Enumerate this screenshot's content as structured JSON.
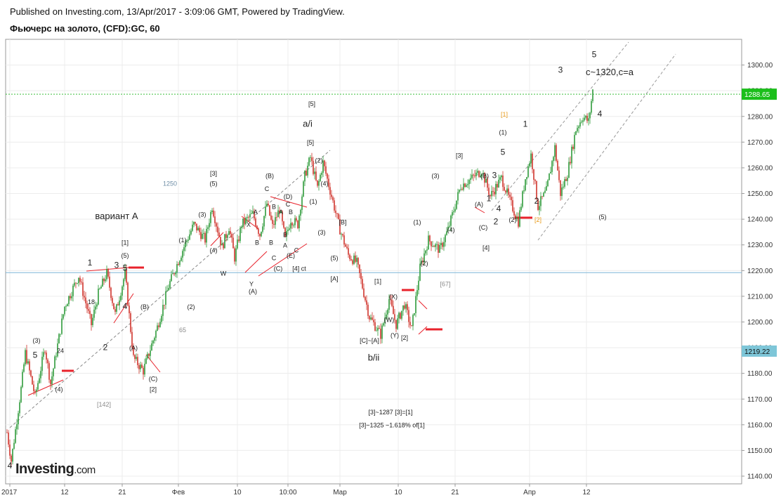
{
  "header": {
    "published": "Published on Investing.com, 13/Apr/2017 - 3:09:06 GMT, Powered by TradingView.",
    "symbol": "Фьючерс на золото, (CFD):GC, 60"
  },
  "logo": {
    "name": "Investing",
    "suffix": ".com"
  },
  "colors": {
    "up": "#2e9b3a",
    "down": "#d0342c",
    "grid": "#ececec",
    "trend": "#888888",
    "ref_line": "#7fb5d8",
    "last_line": "#3bbf3b",
    "marker": "#e8222b",
    "orange": "#e89a1b"
  },
  "chart_data": {
    "type": "candlestick",
    "title": "Фьючерс на золото, (CFD):GC, 60",
    "ylim": [
      1137,
      1310
    ],
    "y_ticks": [
      1140,
      1150,
      1160,
      1170,
      1180,
      1190,
      1200,
      1210,
      1220,
      1230,
      1240,
      1250,
      1260,
      1270,
      1280,
      1290,
      1300
    ],
    "x_ticks": [
      "2017",
      "12",
      "21",
      "Фев",
      "10",
      "10:00",
      "Мар",
      "10",
      "21",
      "Апр",
      "12"
    ],
    "last_price": "1288.65",
    "ref_price": "1219.22",
    "price_path": [
      [
        0,
        1157
      ],
      [
        3,
        1146
      ],
      [
        10,
        1174
      ],
      [
        13,
        1188
      ],
      [
        20,
        1171
      ],
      [
        27,
        1190
      ],
      [
        31,
        1176
      ],
      [
        41,
        1206
      ],
      [
        51,
        1218
      ],
      [
        60,
        1199
      ],
      [
        65,
        1211
      ],
      [
        71,
        1219
      ],
      [
        77,
        1203
      ],
      [
        84,
        1219
      ],
      [
        90,
        1186
      ],
      [
        97,
        1181
      ],
      [
        107,
        1198
      ],
      [
        115,
        1214
      ],
      [
        125,
        1228
      ],
      [
        133,
        1238
      ],
      [
        141,
        1232
      ],
      [
        146,
        1245
      ],
      [
        153,
        1229
      ],
      [
        158,
        1237
      ],
      [
        162,
        1225
      ],
      [
        167,
        1238
      ],
      [
        175,
        1242
      ],
      [
        180,
        1234
      ],
      [
        185,
        1246
      ],
      [
        189,
        1237
      ],
      [
        194,
        1244
      ],
      [
        198,
        1232
      ],
      [
        202,
        1240
      ],
      [
        207,
        1238
      ],
      [
        212,
        1257
      ],
      [
        216,
        1264
      ],
      [
        221,
        1252
      ],
      [
        225,
        1262
      ],
      [
        231,
        1249
      ],
      [
        237,
        1236
      ],
      [
        243,
        1226
      ],
      [
        249,
        1223
      ],
      [
        258,
        1202
      ],
      [
        266,
        1195
      ],
      [
        272,
        1209
      ],
      [
        277,
        1199
      ],
      [
        283,
        1207
      ],
      [
        288,
        1197
      ],
      [
        294,
        1221
      ],
      [
        300,
        1232
      ],
      [
        308,
        1228
      ],
      [
        314,
        1236
      ],
      [
        323,
        1253
      ],
      [
        331,
        1256
      ],
      [
        338,
        1259
      ],
      [
        344,
        1249
      ],
      [
        352,
        1256
      ],
      [
        358,
        1247
      ],
      [
        364,
        1239
      ],
      [
        369,
        1256
      ],
      [
        373,
        1265
      ],
      [
        378,
        1245
      ],
      [
        384,
        1251
      ],
      [
        390,
        1268
      ],
      [
        394,
        1250
      ],
      [
        399,
        1258
      ],
      [
        405,
        1275
      ],
      [
        410,
        1280
      ],
      [
        414,
        1278
      ],
      [
        417,
        1290
      ]
    ],
    "annotations": [
      {
        "text": "4",
        "x": 2,
        "y": 1143
      },
      {
        "text": "5",
        "x": 20,
        "y": 1186
      },
      {
        "text": "(3)",
        "x": 21,
        "y": 1192
      },
      {
        "text": "24",
        "x": 38,
        "y": 1188
      },
      {
        "text": "(4)",
        "x": 37,
        "y": 1173
      },
      {
        "text": "1",
        "x": 59,
        "y": 1222
      },
      {
        "text": "18",
        "x": 60,
        "y": 1207
      },
      {
        "text": "2",
        "x": 70,
        "y": 1189
      },
      {
        "text": "3",
        "x": 78,
        "y": 1221
      },
      {
        "text": "5",
        "x": 84,
        "y": 1220
      },
      {
        "text": "(5)",
        "x": 84,
        "y": 1225
      },
      {
        "text": "[1]",
        "x": 84,
        "y": 1230
      },
      {
        "text": "4",
        "x": 84,
        "y": 1205
      },
      {
        "text": "вариант А",
        "x": 78,
        "y": 1240
      },
      {
        "text": "(B)",
        "x": 98,
        "y": 1205
      },
      {
        "text": "(A)",
        "x": 90,
        "y": 1189
      },
      {
        "text": "(C)",
        "x": 104,
        "y": 1177
      },
      {
        "text": "[2]",
        "x": 104,
        "y": 1173
      },
      {
        "text": "[142]",
        "x": 69,
        "y": 1167
      },
      {
        "text": "65",
        "x": 125,
        "y": 1196
      },
      {
        "text": "1250",
        "x": 116,
        "y": 1253
      },
      {
        "text": "(1)",
        "x": 125,
        "y": 1231
      },
      {
        "text": "(2)",
        "x": 131,
        "y": 1205
      },
      {
        "text": "(3)",
        "x": 139,
        "y": 1241
      },
      {
        "text": "(4)",
        "x": 147,
        "y": 1227
      },
      {
        "text": "(5)",
        "x": 147,
        "y": 1253
      },
      {
        "text": "[3]",
        "x": 147,
        "y": 1257
      },
      {
        "text": "W",
        "x": 154,
        "y": 1218
      },
      {
        "text": "X",
        "x": 172,
        "y": 1237
      },
      {
        "text": "Y",
        "x": 174,
        "y": 1214
      },
      {
        "text": "(A)",
        "x": 175,
        "y": 1211
      },
      {
        "text": "B",
        "x": 178,
        "y": 1230
      },
      {
        "text": "A",
        "x": 177,
        "y": 1242
      },
      {
        "text": "C",
        "x": 185,
        "y": 1251
      },
      {
        "text": "B",
        "x": 190,
        "y": 1244
      },
      {
        "text": "A",
        "x": 195,
        "y": 1242
      },
      {
        "text": "B",
        "x": 188,
        "y": 1230
      },
      {
        "text": "(B)",
        "x": 187,
        "y": 1256
      },
      {
        "text": "C",
        "x": 190,
        "y": 1224
      },
      {
        "text": "(C)",
        "x": 193,
        "y": 1220
      },
      {
        "text": "A",
        "x": 198,
        "y": 1229
      },
      {
        "text": "B",
        "x": 198,
        "y": 1233
      },
      {
        "text": "C",
        "x": 206,
        "y": 1227
      },
      {
        "text": "(E)",
        "x": 202,
        "y": 1225
      },
      {
        "text": "(D)",
        "x": 200,
        "y": 1248
      },
      {
        "text": "C",
        "x": 200,
        "y": 1245
      },
      {
        "text": "B",
        "x": 202,
        "y": 1242
      },
      {
        "text": "[4] ct",
        "x": 208,
        "y": 1220
      },
      {
        "text": "[5]",
        "x": 217,
        "y": 1284
      },
      {
        "text": "a/i",
        "x": 214,
        "y": 1276
      },
      {
        "text": "[5]",
        "x": 216,
        "y": 1269
      },
      {
        "text": "(2)",
        "x": 222,
        "y": 1262
      },
      {
        "text": "(4)",
        "x": 226,
        "y": 1253
      },
      {
        "text": "(1)",
        "x": 218,
        "y": 1246
      },
      {
        "text": "(3)",
        "x": 224,
        "y": 1234
      },
      {
        "text": "[B]",
        "x": 239,
        "y": 1238
      },
      {
        "text": "(5)",
        "x": 233,
        "y": 1224
      },
      {
        "text": "[A]",
        "x": 233,
        "y": 1216
      },
      {
        "text": "[1]",
        "x": 264,
        "y": 1215
      },
      {
        "text": "(X)",
        "x": 275,
        "y": 1209
      },
      {
        "text": "(W)",
        "x": 272,
        "y": 1200
      },
      {
        "text": "(Y)",
        "x": 276,
        "y": 1194
      },
      {
        "text": "[2]",
        "x": 283,
        "y": 1193
      },
      {
        "text": "[C]~[A]",
        "x": 258,
        "y": 1192
      },
      {
        "text": "b/ii",
        "x": 261,
        "y": 1185
      },
      {
        "text": "[3]~1287 [3]=[1]",
        "x": 273,
        "y": 1164
      },
      {
        "text": "[3]~1325 ~1.618% of[1]",
        "x": 274,
        "y": 1159
      },
      {
        "text": "(1)",
        "x": 292,
        "y": 1238
      },
      {
        "text": "(2)",
        "x": 297,
        "y": 1222
      },
      {
        "text": "(3)",
        "x": 305,
        "y": 1256
      },
      {
        "text": "(4)",
        "x": 316,
        "y": 1235
      },
      {
        "text": "[3]",
        "x": 322,
        "y": 1264
      },
      {
        "text": "[67]",
        "x": 312,
        "y": 1214
      },
      {
        "text": "(A)",
        "x": 336,
        "y": 1245
      },
      {
        "text": "(B)",
        "x": 340,
        "y": 1256
      },
      {
        "text": "1",
        "x": 343,
        "y": 1247
      },
      {
        "text": "3",
        "x": 347,
        "y": 1256
      },
      {
        "text": "4",
        "x": 350,
        "y": 1243
      },
      {
        "text": "2",
        "x": 348,
        "y": 1238
      },
      {
        "text": "(C)",
        "x": 339,
        "y": 1236
      },
      {
        "text": "[4]",
        "x": 341,
        "y": 1228
      },
      {
        "text": "5",
        "x": 353,
        "y": 1265
      },
      {
        "text": "(1)",
        "x": 353,
        "y": 1273
      },
      {
        "text": "(2)",
        "x": 360,
        "y": 1239
      },
      {
        "text": "[1]",
        "x": 354,
        "y": 1280
      },
      {
        "text": "1",
        "x": 369,
        "y": 1276
      },
      {
        "text": "2",
        "x": 377,
        "y": 1246
      },
      {
        "text": "[2]",
        "x": 378,
        "y": 1239
      },
      {
        "text": "3",
        "x": 394,
        "y": 1297
      },
      {
        "text": "5",
        "x": 418,
        "y": 1303
      },
      {
        "text": "c~1320,c=a",
        "x": 429,
        "y": 1296
      },
      {
        "text": "4",
        "x": 422,
        "y": 1280
      },
      {
        "text": "(5)",
        "x": 424,
        "y": 1240
      }
    ]
  }
}
